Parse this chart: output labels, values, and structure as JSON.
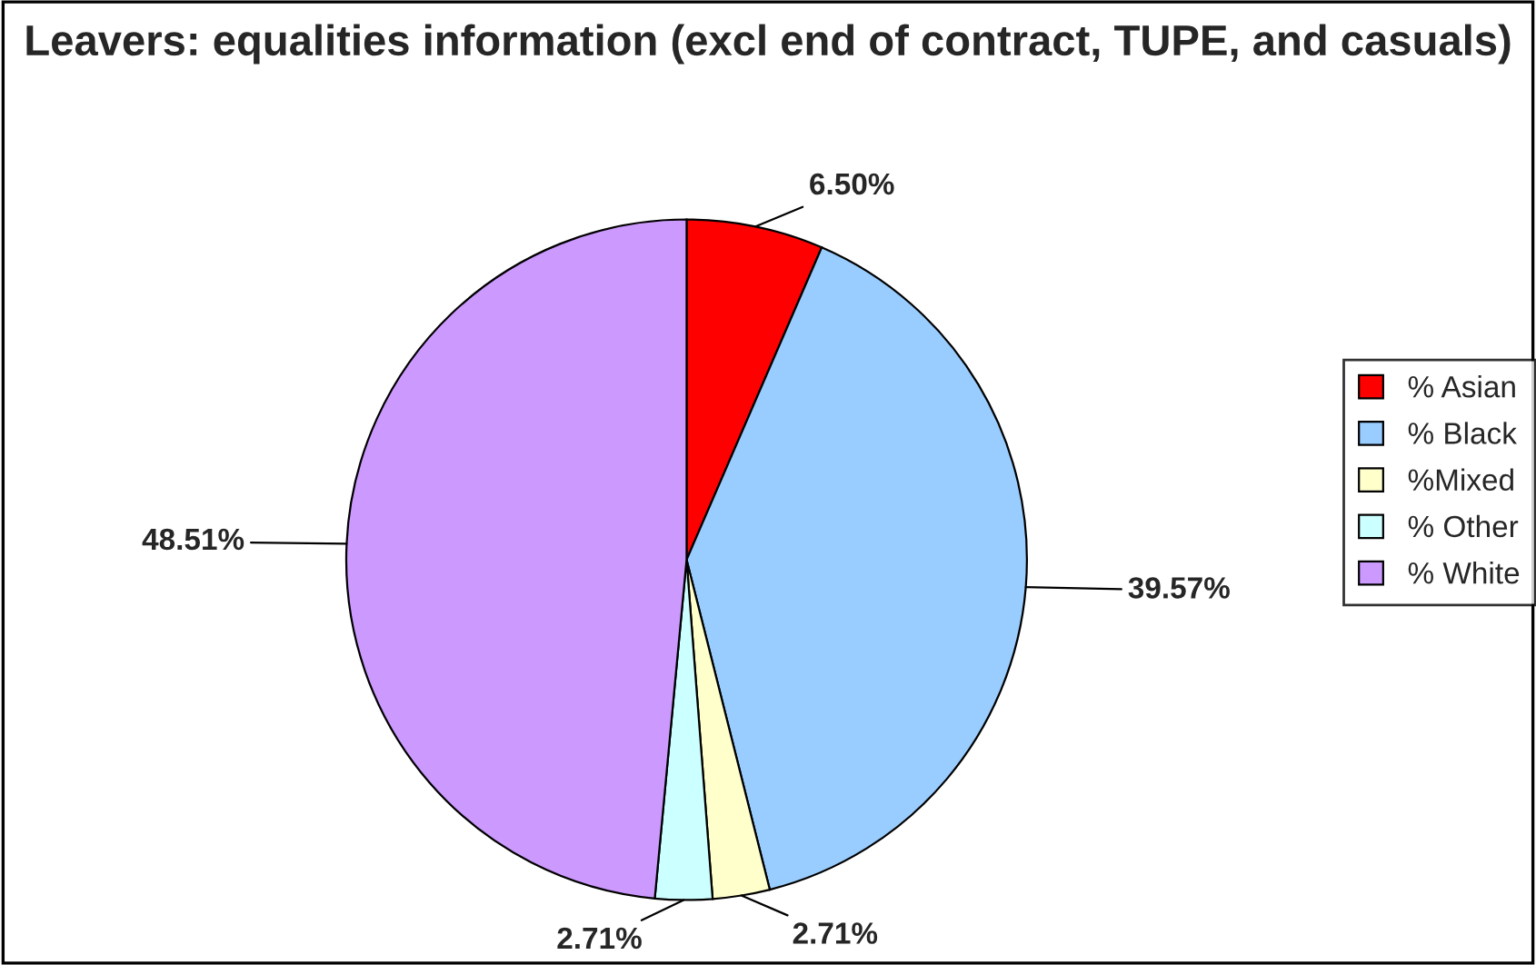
{
  "chart_data": {
    "type": "pie",
    "title": "Leavers: equalities information (excl end of contract, TUPE, and casuals)",
    "categories": [
      "% Asian",
      "% Black",
      "%Mixed",
      "% Other",
      "% White"
    ],
    "values": [
      6.5,
      39.57,
      2.71,
      2.71,
      48.51
    ],
    "value_labels": [
      "6.50%",
      "39.57%",
      "2.71%",
      "2.71%",
      "48.51%"
    ],
    "colors": [
      "#ff0000",
      "#99ccff",
      "#ffffcc",
      "#ccffff",
      "#cc99ff"
    ],
    "legend": "right"
  }
}
